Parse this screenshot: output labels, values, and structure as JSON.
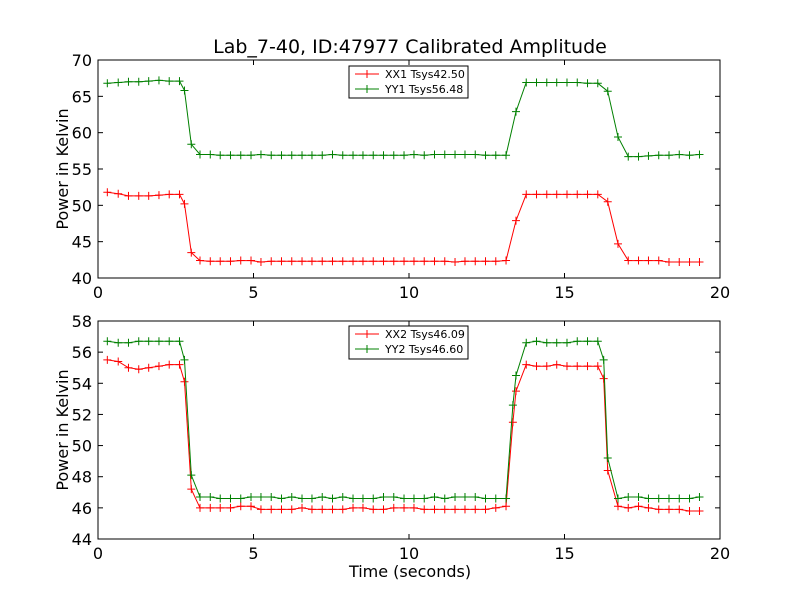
{
  "chart_data": [
    {
      "type": "line",
      "title": "Lab_7-40, ID:47977 Calibrated Amplitude",
      "xlabel": "",
      "ylabel": "Power in Kelvin",
      "xlim": [
        0,
        20
      ],
      "ylim": [
        40,
        70
      ],
      "xticks": [
        "0",
        "5",
        "10",
        "15",
        "20"
      ],
      "yticks": [
        "40",
        "45",
        "50",
        "55",
        "60",
        "65",
        "70"
      ],
      "legend_position": "top-center",
      "x": [
        0.3,
        0.65,
        0.98,
        1.31,
        1.63,
        1.96,
        2.29,
        2.62,
        2.78,
        3.0,
        3.28,
        3.61,
        3.93,
        4.26,
        4.59,
        4.92,
        5.24,
        5.57,
        5.9,
        6.23,
        6.56,
        6.88,
        7.21,
        7.54,
        7.87,
        8.2,
        8.52,
        8.85,
        9.18,
        9.51,
        9.84,
        10.16,
        10.49,
        10.82,
        11.15,
        11.48,
        11.8,
        12.13,
        12.46,
        12.79,
        13.12,
        13.44,
        13.77,
        14.1,
        14.43,
        14.75,
        15.08,
        15.41,
        15.74,
        16.07,
        16.39,
        16.72,
        17.05,
        17.38,
        17.7,
        18.03,
        18.36,
        18.69,
        19.02,
        19.34
      ],
      "series": [
        {
          "name": "XX1 Tsys42.50",
          "color": "#ff0000",
          "values": [
            51.8,
            51.6,
            51.3,
            51.3,
            51.3,
            51.4,
            51.5,
            51.5,
            50.2,
            43.5,
            42.4,
            42.3,
            42.3,
            42.3,
            42.4,
            42.4,
            42.2,
            42.3,
            42.3,
            42.3,
            42.3,
            42.3,
            42.3,
            42.3,
            42.3,
            42.3,
            42.3,
            42.3,
            42.3,
            42.3,
            42.3,
            42.3,
            42.3,
            42.3,
            42.3,
            42.2,
            42.3,
            42.3,
            42.3,
            42.3,
            42.4,
            47.9,
            51.5,
            51.5,
            51.5,
            51.5,
            51.5,
            51.5,
            51.5,
            51.5,
            50.5,
            44.7,
            42.4,
            42.4,
            42.4,
            42.4,
            42.2,
            42.2,
            42.2,
            42.2
          ]
        },
        {
          "name": "YY1 Tsys56.48",
          "color": "#008000",
          "values": [
            66.8,
            66.9,
            67.0,
            67.0,
            67.1,
            67.2,
            67.1,
            67.1,
            65.8,
            58.4,
            57.0,
            57.0,
            56.9,
            56.9,
            56.9,
            56.9,
            57.0,
            56.9,
            56.9,
            56.9,
            56.9,
            56.9,
            56.9,
            57.0,
            56.9,
            56.9,
            56.9,
            56.9,
            56.9,
            56.9,
            56.9,
            57.0,
            56.9,
            57.0,
            57.0,
            57.0,
            57.0,
            57.0,
            56.9,
            56.9,
            56.9,
            62.9,
            66.9,
            66.9,
            66.9,
            66.9,
            66.9,
            66.9,
            66.8,
            66.8,
            65.7,
            59.4,
            56.7,
            56.7,
            56.8,
            56.9,
            56.9,
            57.0,
            56.9,
            57.0
          ]
        }
      ]
    },
    {
      "type": "line",
      "title": "",
      "xlabel": "Time (seconds)",
      "ylabel": "Power in Kelvin",
      "xlim": [
        0,
        20
      ],
      "ylim": [
        44,
        58
      ],
      "xticks": [
        "0",
        "5",
        "10",
        "15",
        "20"
      ],
      "yticks": [
        "44",
        "46",
        "48",
        "50",
        "52",
        "54",
        "56",
        "58"
      ],
      "legend_position": "top-center",
      "x": [
        0.3,
        0.65,
        0.98,
        1.31,
        1.63,
        1.96,
        2.29,
        2.62,
        2.78,
        3.0,
        3.28,
        3.61,
        3.93,
        4.26,
        4.59,
        4.92,
        5.24,
        5.57,
        5.9,
        6.23,
        6.56,
        6.88,
        7.21,
        7.54,
        7.87,
        8.2,
        8.52,
        8.85,
        9.18,
        9.51,
        9.84,
        10.16,
        10.49,
        10.82,
        11.15,
        11.48,
        11.8,
        12.13,
        12.46,
        12.79,
        13.12,
        13.34,
        13.44,
        13.77,
        14.1,
        14.43,
        14.75,
        15.08,
        15.41,
        15.74,
        16.07,
        16.26,
        16.39,
        16.72,
        17.05,
        17.38,
        17.7,
        18.03,
        18.36,
        18.69,
        19.02,
        19.34
      ],
      "series": [
        {
          "name": "XX2 Tsys46.09",
          "color": "#ff0000",
          "values": [
            55.5,
            55.4,
            55.0,
            54.9,
            55.0,
            55.1,
            55.2,
            55.2,
            54.1,
            47.2,
            46.0,
            46.0,
            46.0,
            46.0,
            46.1,
            46.1,
            45.9,
            45.9,
            45.9,
            45.9,
            46.0,
            45.9,
            45.9,
            45.9,
            45.9,
            46.0,
            46.0,
            45.9,
            45.9,
            46.0,
            46.0,
            46.0,
            45.9,
            45.9,
            45.9,
            45.9,
            45.9,
            45.9,
            45.9,
            46.0,
            46.1,
            51.5,
            53.5,
            55.2,
            55.1,
            55.1,
            55.2,
            55.1,
            55.1,
            55.1,
            55.1,
            54.3,
            48.4,
            46.1,
            46.0,
            46.1,
            46.0,
            45.9,
            45.9,
            45.9,
            45.8,
            45.8
          ]
        },
        {
          "name": "YY2 Tsys46.60",
          "color": "#008000",
          "values": [
            56.7,
            56.6,
            56.6,
            56.7,
            56.7,
            56.7,
            56.7,
            56.7,
            55.5,
            48.1,
            46.7,
            46.7,
            46.6,
            46.6,
            46.6,
            46.7,
            46.7,
            46.7,
            46.6,
            46.7,
            46.6,
            46.6,
            46.7,
            46.6,
            46.7,
            46.6,
            46.6,
            46.6,
            46.7,
            46.7,
            46.6,
            46.6,
            46.6,
            46.7,
            46.6,
            46.7,
            46.7,
            46.7,
            46.6,
            46.6,
            46.6,
            52.6,
            54.5,
            56.6,
            56.7,
            56.6,
            56.6,
            56.6,
            56.7,
            56.7,
            56.7,
            55.5,
            49.2,
            46.6,
            46.7,
            46.7,
            46.6,
            46.6,
            46.6,
            46.6,
            46.6,
            46.7
          ]
        }
      ]
    }
  ]
}
